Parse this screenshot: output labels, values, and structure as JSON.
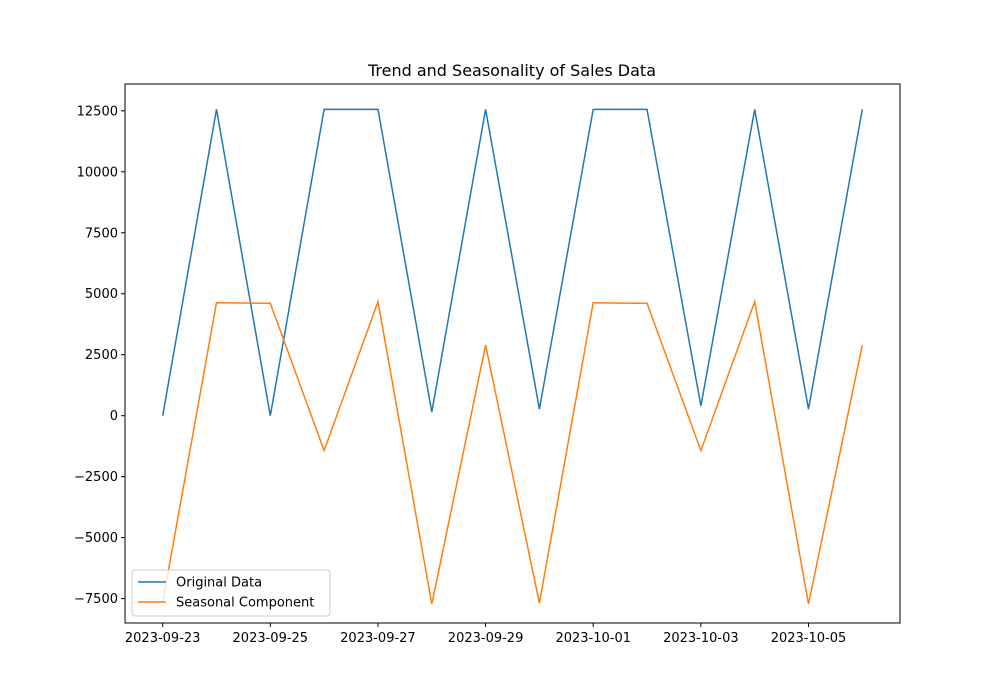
{
  "chart_data": {
    "type": "line",
    "title": "Trend and Seasonality of Sales Data",
    "xlabel": "",
    "ylabel": "",
    "x": [
      "2023-09-23",
      "2023-09-24",
      "2023-09-25",
      "2023-09-26",
      "2023-09-27",
      "2023-09-28",
      "2023-09-29",
      "2023-09-30",
      "2023-10-01",
      "2023-10-02",
      "2023-10-03",
      "2023-10-04",
      "2023-10-05",
      "2023-10-06"
    ],
    "xticks": [
      "2023-09-23",
      "2023-09-25",
      "2023-09-27",
      "2023-09-29",
      "2023-10-01",
      "2023-10-03",
      "2023-10-05"
    ],
    "yticks": [
      -7500,
      -5000,
      -2500,
      0,
      2500,
      5000,
      7500,
      10000,
      12500
    ],
    "ylim": [
      -8500,
      13600
    ],
    "xlim": [
      "2023-09-22T07:12",
      "2023-10-06T16:48"
    ],
    "grid": false,
    "legend_position": "lower-left",
    "series": [
      {
        "name": "Original Data",
        "color": "#1f77b4",
        "values": [
          0,
          12560,
          0,
          12560,
          12560,
          150,
          12560,
          270,
          12560,
          12560,
          400,
          12560,
          270,
          12560
        ]
      },
      {
        "name": "Seasonal Component",
        "color": "#ff7f0e",
        "values": [
          -7650,
          4630,
          4610,
          -1430,
          4680,
          -7720,
          2890,
          -7690,
          4630,
          4610,
          -1430,
          4680,
          -7720,
          2890
        ]
      }
    ]
  }
}
